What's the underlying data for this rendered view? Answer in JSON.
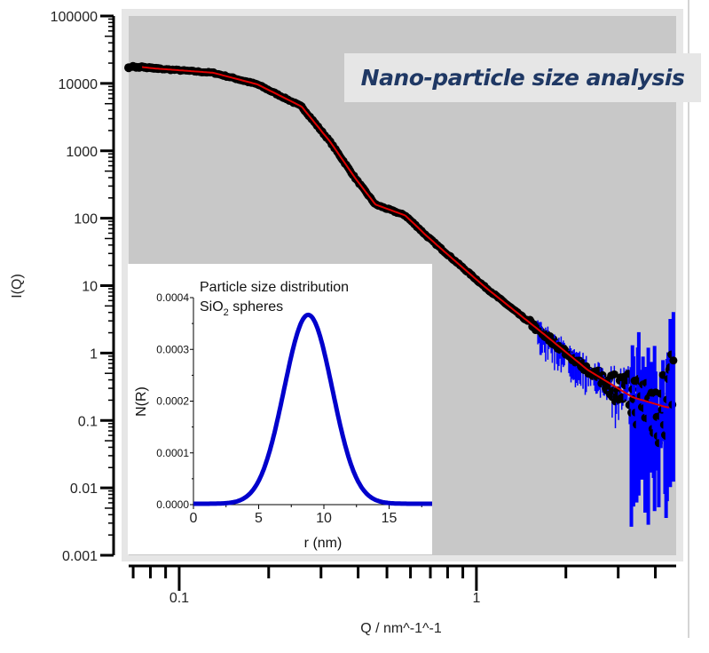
{
  "chart_data": [
    {
      "type": "scatter",
      "title": "Nano-particle size analysis",
      "xlabel": "Q / nm^-1^-1",
      "ylabel": "I(Q)",
      "xscale": "log",
      "yscale": "log",
      "xlim": [
        0.0676,
        4.7
      ],
      "ylim": [
        0.001,
        100000
      ],
      "x_tick_labels": [
        "0.1",
        "1"
      ],
      "x_ticks": [
        0.1,
        1
      ],
      "y_tick_labels": [
        "100000",
        "10000",
        "1000",
        "100",
        "10",
        "1",
        "0.1",
        "0.01",
        "0.001"
      ],
      "y_ticks": [
        100000,
        10000,
        1000,
        100,
        10,
        1,
        0.1,
        0.01,
        0.001
      ],
      "grid": false,
      "plot_background": "#c8c8c8",
      "series": [
        {
          "role": "data points with error bars",
          "marker_color": "#000000",
          "errorbar_color": "#0000ff",
          "x": [
            0.0676,
            0.082,
            0.13,
            0.183,
            0.258,
            0.323,
            0.39,
            0.457,
            0.576,
            0.64,
            0.67,
            0.78,
            1.07,
            1.69,
            2.37,
            3.36,
            4.3,
            4.6
          ],
          "y": [
            17800,
            16700,
            14400,
            9700,
            4550,
            1340,
            400,
            160,
            110,
            71,
            58,
            32,
            9.5,
            1.9,
            0.56,
            0.22,
            0.16,
            0.6
          ]
        },
        {
          "role": "fit",
          "color": "#e00000",
          "x": [
            0.075,
            0.082,
            0.13,
            0.183,
            0.258,
            0.323,
            0.39,
            0.457,
            0.576,
            0.64,
            0.67,
            0.78,
            1.07,
            1.69,
            2.37,
            3.36,
            4.3,
            4.45
          ],
          "y": [
            17500,
            16700,
            14400,
            9700,
            4550,
            1340,
            400,
            160,
            110,
            71,
            58,
            32,
            9.5,
            1.9,
            0.56,
            0.22,
            0.16,
            0.155
          ]
        }
      ]
    },
    {
      "type": "line",
      "title_line1": "Particle size distribution",
      "title_line2_main": "SiO",
      "title_line2_sub": "2",
      "title_line2_rest": " spheres",
      "xlabel": "r (nm)",
      "ylabel": "N(R)",
      "xlim": [
        0,
        18.3
      ],
      "ylim": [
        0,
        0.0004
      ],
      "x_ticks": [
        0,
        5,
        10,
        15
      ],
      "x_tick_labels": [
        "0",
        "5",
        "10",
        "15"
      ],
      "y_ticks": [
        0,
        0.0001,
        0.0002,
        0.0003,
        0.0004
      ],
      "y_tick_labels": [
        "0.0000",
        "0.0001",
        "0.0002",
        "0.0003",
        "0.0004"
      ],
      "series": [
        {
          "color": "#0000cc",
          "x": [
            0,
            2,
            4,
            5,
            6,
            7,
            8,
            8.8,
            9.5,
            10.5,
            11.5,
            12.5,
            13.5,
            15,
            18.3
          ],
          "y": [
            0,
            2e-07,
            1.1e-05,
            4.3e-05,
            0.000113,
            0.000227,
            0.00033,
            0.000365,
            0.00034,
            0.000244,
            0.000132,
            5.2e-05,
            1.5e-05,
            8e-07,
            0
          ]
        }
      ]
    }
  ]
}
